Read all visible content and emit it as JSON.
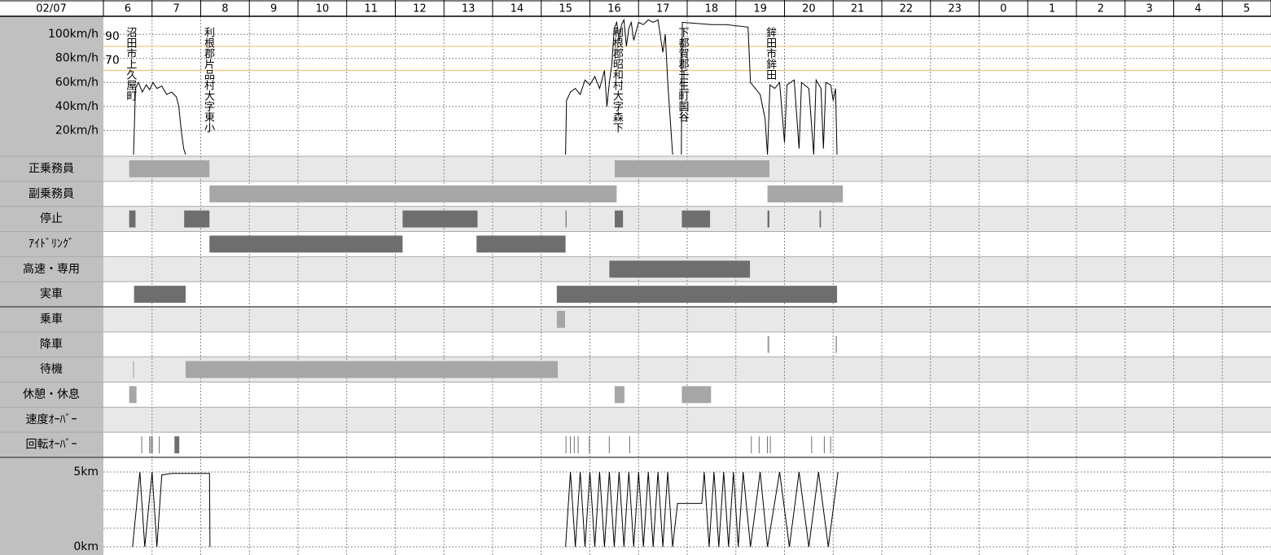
{
  "chart_data": {
    "type": "timeline",
    "date": "02/07",
    "hours": [
      6,
      7,
      8,
      9,
      10,
      11,
      12,
      13,
      14,
      15,
      16,
      17,
      18,
      19,
      20,
      21,
      22,
      23,
      0,
      1,
      2,
      3,
      4,
      5
    ],
    "speed": {
      "ylim": [
        0,
        115
      ],
      "yticks": [
        {
          "value": 100,
          "label": "100km/h"
        },
        {
          "value": 80,
          "label": "80km/h"
        },
        {
          "value": 60,
          "label": "60km/h"
        },
        {
          "value": 40,
          "label": "40km/h"
        },
        {
          "value": 20,
          "label": "20km/h"
        }
      ],
      "thresholds": [
        90,
        70
      ],
      "threshold_color": "#f5c27a",
      "color": "#000000",
      "x": [
        6.62,
        6.66,
        6.72,
        6.8,
        6.88,
        6.95,
        7.02,
        7.1,
        7.2,
        7.3,
        7.4,
        7.5,
        7.55,
        7.6,
        7.65,
        7.69,
        null,
        15.5,
        15.52,
        15.6,
        15.7,
        15.8,
        15.9,
        16.0,
        16.1,
        16.2,
        16.3,
        16.35,
        16.4,
        16.45,
        16.5,
        16.55,
        16.6,
        16.65,
        16.7,
        16.75,
        16.8,
        16.85,
        16.9,
        17.0,
        17.1,
        17.2,
        17.3,
        17.4,
        17.5,
        17.55,
        17.6,
        17.65,
        17.7,
        null,
        17.88,
        17.9,
        18.5,
        18.8,
        19.25,
        19.3,
        19.4,
        19.5,
        19.6,
        19.65,
        19.7,
        19.8,
        19.9,
        20.0,
        20.05,
        20.2,
        20.3,
        20.35,
        20.5,
        20.6,
        20.65,
        20.75,
        20.8,
        20.85,
        20.95,
        21.0,
        21.05,
        21.08
      ],
      "values": [
        0,
        55,
        60,
        52,
        58,
        54,
        60,
        55,
        57,
        50,
        52,
        48,
        40,
        20,
        5,
        0,
        null,
        0,
        45,
        52,
        55,
        50,
        62,
        58,
        65,
        55,
        70,
        40,
        60,
        75,
        105,
        110,
        95,
        108,
        112,
        90,
        105,
        110,
        95,
        110,
        108,
        112,
        110,
        112,
        85,
        100,
        60,
        30,
        0,
        null,
        0,
        110,
        108,
        108,
        106,
        60,
        55,
        50,
        30,
        0,
        58,
        55,
        60,
        10,
        58,
        62,
        5,
        60,
        55,
        0,
        62,
        55,
        5,
        60,
        58,
        45,
        55,
        0
      ]
    },
    "places": [
      {
        "label": "沼田市上久屋町",
        "time": 6.5
      },
      {
        "label": "利根郡片品村大字東小",
        "time": 8.1
      },
      {
        "label": "利根郡昭和村大字森下",
        "time": 16.5
      },
      {
        "label": "下都賀郡壬生町国谷",
        "time": 17.85
      },
      {
        "label": "鉾田市鉾田",
        "time": 19.65
      }
    ],
    "rows": [
      {
        "label": "正乗務員",
        "color": "#a6a6a6",
        "intervals": [
          [
            6.53,
            8.18
          ],
          [
            16.51,
            19.69
          ]
        ]
      },
      {
        "label": "副乗務員",
        "color": "#a6a6a6",
        "intervals": [
          [
            8.18,
            16.55
          ],
          [
            19.65,
            21.2
          ]
        ]
      },
      {
        "label": "停止",
        "color": "#6e6e6e",
        "intervals": [
          [
            6.53,
            6.66
          ],
          [
            7.66,
            8.18
          ],
          [
            12.15,
            13.69
          ],
          [
            15.5,
            15.52
          ],
          [
            16.51,
            16.68
          ],
          [
            17.89,
            18.47
          ],
          [
            19.65,
            19.69
          ],
          [
            20.72,
            20.75
          ]
        ]
      },
      {
        "label": "ｱｲﾄﾞﾘﾝｸﾞ",
        "color": "#6e6e6e",
        "intervals": [
          [
            8.18,
            12.15
          ],
          [
            13.67,
            15.5
          ]
        ]
      },
      {
        "label": "高速・専用",
        "color": "#6e6e6e",
        "intervals": [
          [
            16.4,
            19.29
          ]
        ]
      },
      {
        "label": "実車",
        "color": "#6e6e6e",
        "intervals": [
          [
            6.63,
            7.69
          ],
          [
            15.32,
            21.08
          ]
        ]
      },
      {
        "label": "乗車",
        "color": "#a6a6a6",
        "intervals": [
          [
            15.32,
            15.49
          ]
        ]
      },
      {
        "label": "降車",
        "color": "#a6a6a6",
        "intervals": [
          [
            19.65,
            19.69
          ],
          [
            21.05,
            21.08
          ]
        ]
      },
      {
        "label": "待機",
        "color": "#a6a6a6",
        "intervals": [
          [
            6.61,
            6.63
          ],
          [
            7.69,
            15.34
          ]
        ]
      },
      {
        "label": "休憩・休息",
        "color": "#a6a6a6",
        "intervals": [
          [
            6.53,
            6.68
          ],
          [
            16.51,
            16.71
          ],
          [
            17.89,
            18.49
          ]
        ]
      },
      {
        "label": "速度ｵｰﾊﾞｰ",
        "color": "#6e6e6e",
        "intervals": []
      },
      {
        "label": "回転ｵｰﾊﾞｰ",
        "color": "#6e6e6e",
        "intervals": [
          [
            6.78,
            6.79
          ],
          [
            6.94,
            6.95
          ],
          [
            6.97,
            6.98
          ],
          [
            7.0,
            7.01
          ],
          [
            7.14,
            7.15
          ],
          [
            7.46,
            7.56
          ],
          [
            15.5,
            15.51
          ],
          [
            15.59,
            15.6
          ],
          [
            15.67,
            15.68
          ],
          [
            15.75,
            15.76
          ],
          [
            15.98,
            15.99
          ],
          [
            16.39,
            16.4
          ],
          [
            16.81,
            16.82
          ],
          [
            19.31,
            19.32
          ],
          [
            19.47,
            19.48
          ],
          [
            19.64,
            19.65
          ],
          [
            19.7,
            19.71
          ],
          [
            20.55,
            20.56
          ],
          [
            20.81,
            20.82
          ],
          [
            20.94,
            20.95
          ]
        ]
      }
    ],
    "distance": {
      "ylim": [
        0,
        5
      ],
      "yticks": [
        {
          "value": 5,
          "label": "5km"
        },
        {
          "value": 0,
          "label": "0km"
        }
      ],
      "color": "#000000",
      "x": [
        6.6,
        6.75,
        6.85,
        7.0,
        7.1,
        7.2,
        7.4,
        8.18,
        8.19,
        null,
        15.5,
        15.6,
        15.7,
        15.8,
        15.9,
        16.0,
        16.1,
        16.2,
        16.3,
        16.4,
        16.5,
        16.6,
        16.7,
        16.8,
        16.9,
        17.0,
        17.1,
        17.2,
        17.3,
        17.4,
        17.5,
        17.6,
        17.7,
        17.8,
        18.3,
        18.35,
        18.45,
        18.55,
        18.65,
        18.75,
        18.85,
        18.95,
        19.05,
        19.15,
        19.3,
        19.5,
        19.65,
        19.9,
        20.1,
        20.3,
        20.5,
        20.7,
        20.9,
        21.1
      ],
      "values": [
        0,
        5,
        0,
        5,
        0,
        4.8,
        4.9,
        4.9,
        0,
        null,
        0,
        5,
        0,
        5,
        0,
        5,
        0,
        5,
        0,
        5,
        0,
        5,
        0,
        5,
        0,
        5,
        0,
        5,
        0,
        5,
        0,
        5,
        0,
        2.9,
        2.9,
        5,
        0,
        5,
        0,
        5,
        0,
        5,
        0,
        5,
        0,
        5,
        0,
        5,
        0,
        5,
        0,
        5,
        0,
        5
      ]
    }
  }
}
